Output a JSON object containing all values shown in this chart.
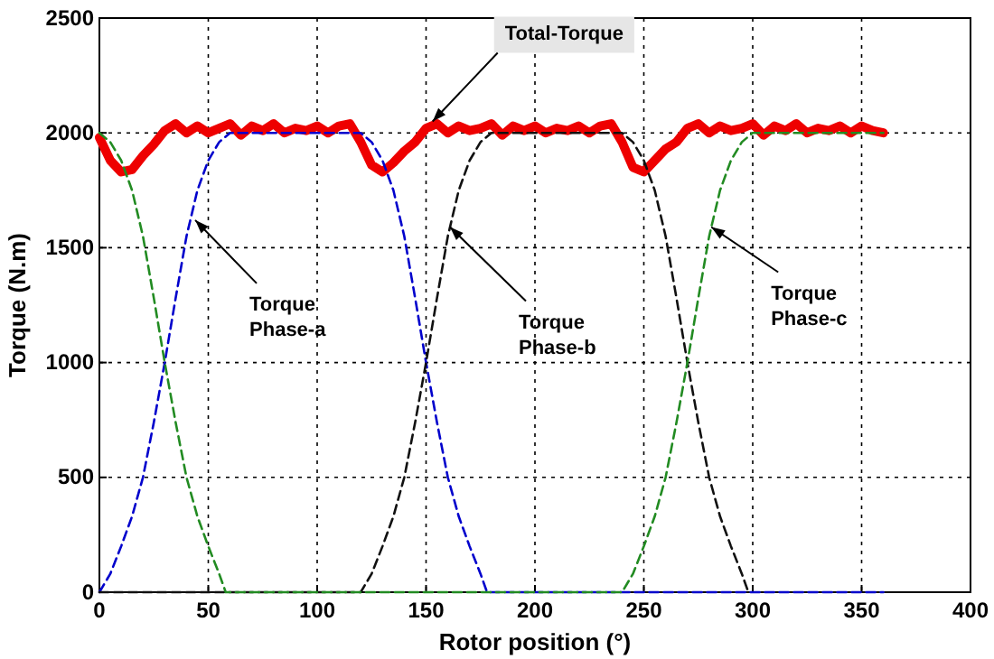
{
  "chart_data": {
    "type": "line",
    "xlabel": "Rotor position (°)",
    "ylabel": "Torque (N.m)",
    "xlim": [
      0,
      400
    ],
    "xticks": [
      0,
      50,
      100,
      150,
      200,
      250,
      300,
      350,
      400
    ],
    "ylim": [
      0,
      2500
    ],
    "yticks": [
      0,
      500,
      1000,
      1500,
      2000,
      2500
    ],
    "grid": true,
    "line_style": "dashed",
    "series": [
      {
        "color": "#0000cc",
        "x": [
          0,
          5,
          10,
          15,
          20,
          25,
          30,
          35,
          40,
          45,
          50,
          55,
          60,
          120,
          125,
          130,
          135,
          140,
          145,
          150,
          155,
          160,
          165,
          170,
          175,
          178,
          360
        ],
        "values": [
          0,
          80,
          200,
          330,
          500,
          740,
          1000,
          1280,
          1550,
          1750,
          1880,
          1960,
          2000,
          2000,
          1960,
          1880,
          1750,
          1550,
          1280,
          1000,
          740,
          500,
          330,
          200,
          80,
          0,
          0
        ]
      },
      {
        "color": "#111111",
        "x": [
          0,
          120,
          125,
          130,
          135,
          140,
          145,
          150,
          155,
          160,
          165,
          170,
          175,
          180,
          240,
          245,
          250,
          255,
          260,
          265,
          270,
          275,
          280,
          285,
          290,
          295,
          298
        ],
        "values": [
          0,
          0,
          80,
          200,
          330,
          500,
          740,
          1000,
          1280,
          1550,
          1750,
          1880,
          1960,
          2000,
          2000,
          1960,
          1880,
          1750,
          1550,
          1280,
          1000,
          740,
          500,
          330,
          200,
          80,
          0
        ]
      },
      {
        "color": "#228b22",
        "x": [
          0,
          5,
          10,
          15,
          20,
          25,
          30,
          35,
          40,
          45,
          50,
          55,
          58,
          240,
          245,
          250,
          255,
          260,
          265,
          270,
          275,
          280,
          285,
          290,
          295,
          300,
          360
        ],
        "values": [
          2000,
          1960,
          1880,
          1750,
          1550,
          1280,
          1000,
          740,
          500,
          330,
          200,
          80,
          0,
          0,
          80,
          200,
          330,
          500,
          740,
          1000,
          1280,
          1550,
          1750,
          1880,
          1960,
          2000,
          2000
        ]
      },
      {
        "color": "#ee0000",
        "line_style": "solid",
        "x": [
          0,
          5,
          10,
          15,
          20,
          25,
          30,
          35,
          40,
          45,
          50,
          55,
          60,
          65,
          70,
          75,
          80,
          85,
          90,
          95,
          100,
          105,
          110,
          115,
          120,
          125,
          130,
          135,
          140,
          145,
          150,
          155,
          160,
          165,
          170,
          175,
          180,
          185,
          190,
          195,
          200,
          205,
          210,
          215,
          220,
          225,
          230,
          235,
          240,
          245,
          250,
          255,
          260,
          265,
          270,
          275,
          280,
          285,
          290,
          295,
          300,
          305,
          310,
          315,
          320,
          325,
          330,
          335,
          340,
          345,
          350,
          355,
          360
        ],
        "values": [
          1980,
          1880,
          1830,
          1840,
          1900,
          1950,
          2010,
          2040,
          2000,
          2030,
          2000,
          2020,
          2040,
          1990,
          2030,
          2010,
          2040,
          2000,
          2020,
          2010,
          2030,
          2000,
          2030,
          2040,
          1960,
          1860,
          1830,
          1870,
          1920,
          1960,
          2020,
          2040,
          2000,
          2030,
          2010,
          2020,
          2040,
          1990,
          2030,
          2010,
          2030,
          2000,
          2020,
          2010,
          2030,
          2000,
          2030,
          2040,
          1960,
          1850,
          1830,
          1880,
          1930,
          1960,
          2020,
          2040,
          2000,
          2030,
          2010,
          2020,
          2040,
          1990,
          2030,
          2010,
          2040,
          2000,
          2020,
          2010,
          2030,
          2000,
          2030,
          2010,
          2000
        ]
      }
    ],
    "annotations": [
      {
        "text": "Total-Torque",
        "x": 153,
        "y": 2050
      },
      {
        "text": "Torque Phase-a",
        "x": 44,
        "y": 1620
      },
      {
        "text": "Torque Phase-b",
        "x": 161,
        "y": 1590
      },
      {
        "text": "Torque Phase-c",
        "x": 281,
        "y": 1590
      }
    ]
  }
}
